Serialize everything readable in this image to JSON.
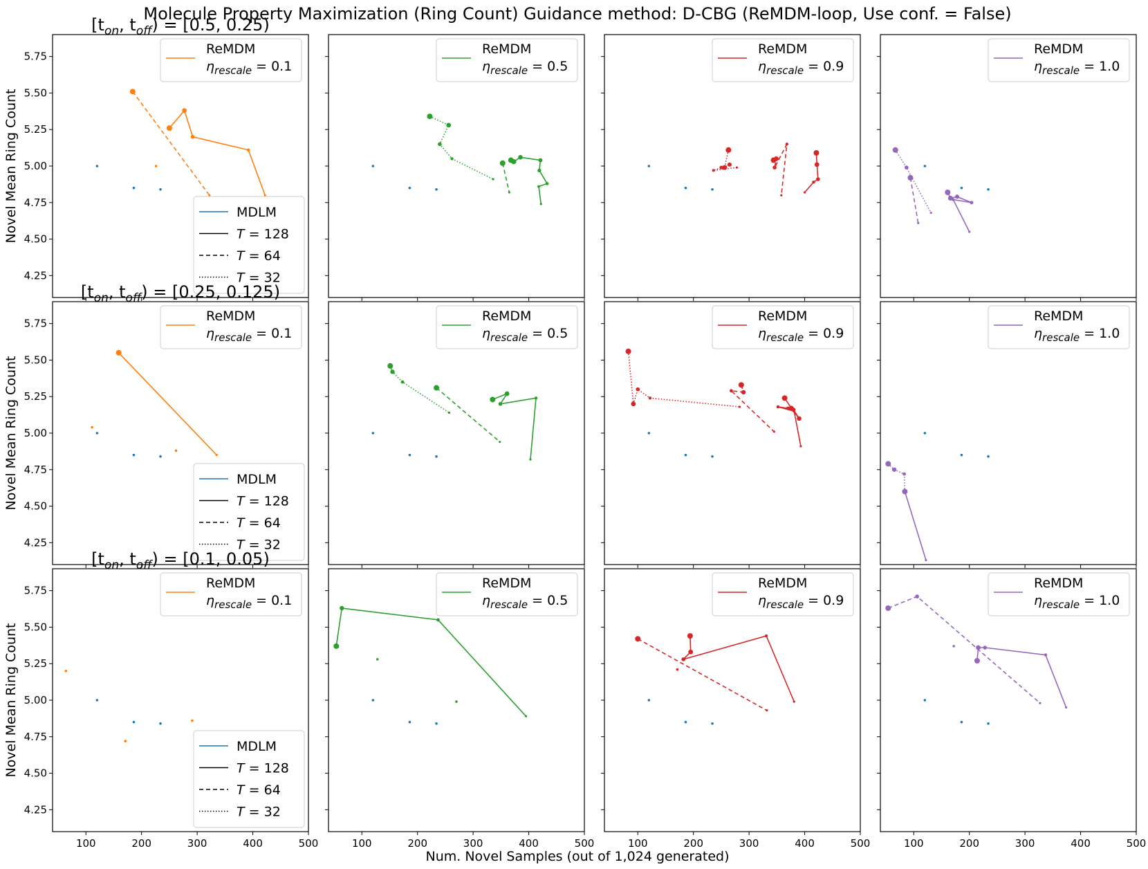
{
  "figure": {
    "title": "Molecule Property Maximization (Ring Count) Guidance method: D-CBG (ReMDM-loop, Use conf. = False)",
    "xlabel": "Num. Novel Samples (out of 1,024 generated)",
    "ylabel": "Novel Mean Ring Count",
    "row_titles": [
      "[t_on, t_off) = [0.5, 0.25)",
      "[t_on, t_off) = [0.25, 0.125)",
      "[t_on, t_off) = [0.1, 0.05)"
    ],
    "row_title_parts": [
      {
        "prefix": "[t",
        "sub1": "on",
        "mid": ", t",
        "sub2": "off",
        "suffix": ") = [0.5, 0.25)"
      },
      {
        "prefix": "[t",
        "sub1": "on",
        "mid": ", t",
        "sub2": "off",
        "suffix": ") = [0.25, 0.125)"
      },
      {
        "prefix": "[t",
        "sub1": "on",
        "mid": ", t",
        "sub2": "off",
        "suffix": ") = [0.1, 0.05)"
      }
    ]
  },
  "colors": {
    "mdlm": "#1f77b4",
    "eta_0.1": "#ff7f0e",
    "eta_0.5": "#2ca02c",
    "eta_0.9": "#d62728",
    "eta_1.0": "#9467bd",
    "axes": "#000000"
  },
  "legends": {
    "remdm_label": "ReMDM",
    "eta_symbol": "η",
    "eta_subscript": "rescale",
    "eta_values": [
      "0.1",
      "0.5",
      "0.9",
      "1.0"
    ],
    "style_legend": [
      {
        "label": "MDLM",
        "style": "mdlm"
      },
      {
        "label": "T = 128",
        "sym": "T",
        "value": "128",
        "style": "solid"
      },
      {
        "label": "T = 64",
        "sym": "T",
        "value": "64",
        "style": "dashed"
      },
      {
        "label": "T = 32",
        "sym": "T",
        "value": "32",
        "style": "dotted"
      }
    ]
  },
  "chart_data": {
    "type": "line",
    "xlim": [
      40,
      500
    ],
    "ylim": [
      4.1,
      5.9
    ],
    "xticks": [
      100,
      200,
      300,
      400,
      500
    ],
    "xtick_labels": [
      "100",
      "200",
      "300",
      "400",
      "500"
    ],
    "yticks": [
      4.25,
      4.5,
      4.75,
      5.0,
      5.25,
      5.5,
      5.75
    ],
    "ytick_labels": [
      "4.25",
      "4.50",
      "4.75",
      "5.00",
      "5.25",
      "5.50",
      "5.75"
    ],
    "mdlm_points": [
      [
        120,
        5.0
      ],
      [
        186,
        4.85
      ],
      [
        234,
        4.84
      ]
    ],
    "panels": [
      [
        {
          "eta": "0.1",
          "series": [
            {
              "T": 128,
              "style": "solid",
              "points": [
                [
                  250,
                  5.26
                ],
                [
                  277,
                  5.38
                ],
                [
                  292,
                  5.2
                ],
                [
                  392,
                  5.11
                ],
                [
                  422,
                  4.8
                ]
              ]
            },
            {
              "T": 64,
              "style": "dashed",
              "points": [
                [
                  184,
                  5.51
                ],
                [
                  322,
                  4.8
                ]
              ]
            },
            {
              "T": 32,
              "style": "dotted",
              "points": [
                [
                  226,
                  5.0
                ]
              ]
            }
          ]
        },
        {
          "eta": "0.5",
          "series": [
            {
              "T": 128,
              "style": "solid",
              "points": [
                [
                  368,
                  5.04
                ],
                [
                  373,
                  5.03
                ],
                [
                  385,
                  5.06
                ],
                [
                  421,
                  5.04
                ],
                [
                  419,
                  4.97
                ],
                [
                  433,
                  4.88
                ],
                [
                  418,
                  4.86
                ],
                [
                  422,
                  4.74
                ]
              ]
            },
            {
              "T": 64,
              "style": "dashed",
              "points": [
                [
                  353,
                  5.02
                ],
                [
                  365,
                  4.82
                ]
              ]
            },
            {
              "T": 32,
              "style": "dotted",
              "points": [
                [
                  222,
                  5.34
                ],
                [
                  256,
                  5.28
                ],
                [
                  240,
                  5.15
                ],
                [
                  262,
                  5.05
                ],
                [
                  336,
                  4.91
                ]
              ]
            }
          ]
        },
        {
          "eta": "0.9",
          "series": [
            {
              "T": 128,
              "style": "solid",
              "points": [
                [
                  421,
                  5.09
                ],
                [
                  422,
                  5.01
                ],
                [
                  424,
                  4.91
                ],
                [
                  416,
                  4.89
                ],
                [
                  400,
                  4.82
                ]
              ]
            },
            {
              "T": 64,
              "style": "dashed",
              "points": [
                [
                  344,
                  5.04
                ],
                [
                  349,
                  5.05
                ],
                [
                  346,
                  4.99
                ],
                [
                  368,
                  5.15
                ],
                [
                  358,
                  4.8
                ]
              ]
            },
            {
              "T": 32,
              "style": "dotted",
              "points": [
                [
                  263,
                  5.11
                ],
                [
                  256,
                  4.99
                ],
                [
                  265,
                  5.01
                ],
                [
                  250,
                  4.99
                ],
                [
                  236,
                  4.97
                ],
                [
                  278,
                  4.99
                ]
              ]
            }
          ]
        },
        {
          "eta": "1.0",
          "series": [
            {
              "T": 128,
              "style": "solid",
              "points": [
                [
                  161,
                  4.82
                ],
                [
                  166,
                  4.78
                ],
                [
                  178,
                  4.79
                ],
                [
                  204,
                  4.75
                ],
                [
                  171,
                  4.77
                ],
                [
                  200,
                  4.55
                ]
              ]
            },
            {
              "T": 64,
              "style": "dashed",
              "points": [
                [
                  94,
                  4.92
                ],
                [
                  108,
                  4.61
                ]
              ]
            },
            {
              "T": 32,
              "style": "dotted",
              "points": [
                [
                  67,
                  5.11
                ],
                [
                  87,
                  4.99
                ],
                [
                  131,
                  4.68
                ]
              ]
            }
          ]
        }
      ],
      [
        {
          "eta": "0.1",
          "series": [
            {
              "T": 128,
              "style": "solid",
              "points": [
                [
                  159,
                  5.55
                ],
                [
                  335,
                  4.85
                ]
              ]
            },
            {
              "T": 64,
              "style": "dashed",
              "points": [
                [
                  262,
                  4.88
                ]
              ]
            },
            {
              "T": 32,
              "style": "dotted",
              "points": [
                [
                  111,
                  5.04
                ]
              ]
            }
          ]
        },
        {
          "eta": "0.5",
          "series": [
            {
              "T": 128,
              "style": "solid",
              "points": [
                [
                  335,
                  5.23
                ],
                [
                  361,
                  5.27
                ],
                [
                  349,
                  5.2
                ],
                [
                  413,
                  5.24
                ],
                [
                  403,
                  4.82
                ]
              ]
            },
            {
              "T": 64,
              "style": "dashed",
              "points": [
                [
                  234,
                  5.31
                ],
                [
                  348,
                  4.94
                ]
              ]
            },
            {
              "T": 32,
              "style": "dotted",
              "points": [
                [
                  151,
                  5.46
                ],
                [
                  155,
                  5.42
                ],
                [
                  173,
                  5.35
                ],
                [
                  257,
                  5.14
                ]
              ]
            }
          ]
        },
        {
          "eta": "0.9",
          "series": [
            {
              "T": 128,
              "style": "solid",
              "points": [
                [
                  364,
                  5.24
                ],
                [
                  376,
                  5.17
                ],
                [
                  390,
                  5.1
                ],
                [
                  380,
                  5.16
                ],
                [
                  370,
                  5.17
                ],
                [
                  352,
                  5.18
                ],
                [
                  381,
                  5.15
                ],
                [
                  393,
                  4.91
                ]
              ]
            },
            {
              "T": 64,
              "style": "dashed",
              "points": [
                [
                  286,
                  5.33
                ],
                [
                  290,
                  5.28
                ],
                [
                  268,
                  5.29
                ],
                [
                  345,
                  5.01
                ]
              ]
            },
            {
              "T": 32,
              "style": "dotted",
              "points": [
                [
                  83,
                  5.56
                ],
                [
                  92,
                  5.2
                ],
                [
                  100,
                  5.3
                ],
                [
                  122,
                  5.24
                ],
                [
                  283,
                  5.18
                ]
              ]
            }
          ]
        },
        {
          "eta": "1.0",
          "series": [
            {
              "T": 128,
              "style": "solid",
              "points": [
                [
                  84,
                  4.6
                ],
                [
                  122,
                  4.13
                ]
              ]
            },
            {
              "T": 64,
              "style": "dashed",
              "points": []
            },
            {
              "T": 32,
              "style": "dotted",
              "points": [
                [
                  54,
                  4.79
                ],
                [
                  65,
                  4.75
                ],
                [
                  83,
                  4.72
                ],
                [
                  84,
                  4.6
                ]
              ]
            }
          ]
        }
      ],
      [
        {
          "eta": "0.1",
          "series": [
            {
              "T": 128,
              "style": "solid",
              "points": [
                [
                  291,
                  4.86
                ]
              ]
            },
            {
              "T": 64,
              "style": "dashed",
              "points": [
                [
                  171,
                  4.72
                ]
              ]
            },
            {
              "T": 32,
              "style": "dotted",
              "points": [
                [
                  64,
                  5.2
                ]
              ]
            }
          ]
        },
        {
          "eta": "0.5",
          "series": [
            {
              "T": 128,
              "style": "solid",
              "points": [
                [
                  54,
                  5.37
                ],
                [
                  64,
                  5.63
                ],
                [
                  237,
                  5.55
                ],
                [
                  395,
                  4.89
                ]
              ]
            },
            {
              "T": 64,
              "style": "dashed",
              "points": [
                [
                  270,
                  4.99
                ]
              ]
            },
            {
              "T": 32,
              "style": "dotted",
              "points": [
                [
                  128,
                  5.28
                ]
              ]
            }
          ]
        },
        {
          "eta": "0.9",
          "series": [
            {
              "T": 128,
              "style": "solid",
              "points": [
                [
                  194,
                  5.44
                ],
                [
                  195,
                  5.33
                ],
                [
                  182,
                  5.28
                ],
                [
                  331,
                  5.44
                ],
                [
                  381,
                  4.99
                ]
              ]
            },
            {
              "T": 64,
              "style": "dashed",
              "points": [
                [
                  100,
                  5.42
                ],
                [
                  332,
                  4.93
                ]
              ]
            },
            {
              "T": 32,
              "style": "dotted",
              "points": [
                [
                  171,
                  5.21
                ]
              ]
            }
          ]
        },
        {
          "eta": "1.0",
          "series": [
            {
              "T": 128,
              "style": "solid",
              "points": [
                [
                  214,
                  5.27
                ],
                [
                  216,
                  5.36
                ],
                [
                  228,
                  5.36
                ],
                [
                  337,
                  5.31
                ],
                [
                  374,
                  4.95
                ]
              ]
            },
            {
              "T": 64,
              "style": "dashed",
              "points": [
                [
                  54,
                  5.63
                ],
                [
                  106,
                  5.71
                ],
                [
                  327,
                  4.98
                ]
              ]
            },
            {
              "T": 32,
              "style": "dotted",
              "points": [
                [
                  172,
                  5.37
                ]
              ]
            }
          ]
        }
      ]
    ]
  }
}
